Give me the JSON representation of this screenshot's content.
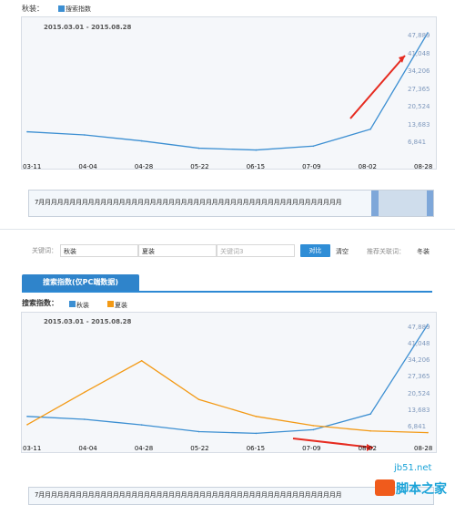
{
  "top": {
    "title": "秋装：",
    "legend": "搜索指数",
    "date_range": "2015.03.01 - 2015.08.28",
    "months_text": "7月月月月月月月月月月月月月月月月月月月月月月月月月月月月月月月月月月月月月月月月月月月月月月月月月"
  },
  "compare_row": {
    "label": "关键词：",
    "keyword1": "秋装",
    "keyword2": "夏装",
    "keyword3_placeholder": "关键词3",
    "compare_button": "对比",
    "clear": "清空",
    "recommend": "推荐关联词：",
    "recommend_value": "冬装"
  },
  "bottom": {
    "tab": "搜索指数(仅PC端数据)",
    "legend_title": "搜索指数：",
    "legend_1": "秋装",
    "legend_2": "夏装",
    "date_range": "2015.03.01 - 2015.08.28",
    "months_text": "7月月月月月月月月月月月月月月月月月月月月月月月月月月月月月月月月月月月月月月月月月月月月月月月月月"
  },
  "watermark": {
    "site": "jb51.net",
    "brand": "脚本之家"
  },
  "colors": {
    "blue": "#3c8fd2",
    "orange": "#f39a16",
    "red": "#e62b20"
  },
  "chart_data": [
    {
      "type": "line",
      "x": [
        "03-11",
        "04-04",
        "04-28",
        "05-22",
        "06-15",
        "07-09",
        "08-02",
        "08-28"
      ],
      "series": [
        {
          "name": "搜索指数",
          "values": [
            11000,
            9800,
            7500,
            4700,
            4000,
            5500,
            12000,
            49000
          ]
        }
      ],
      "y_ticks": [
        6841,
        13683,
        20524,
        27365,
        34206,
        41048,
        47889
      ],
      "ylim": [
        0,
        49000
      ]
    },
    {
      "type": "line",
      "x": [
        "03-11",
        "04-04",
        "04-28",
        "05-22",
        "06-15",
        "07-09",
        "08-02",
        "08-28"
      ],
      "series": [
        {
          "name": "秋装",
          "values": [
            11000,
            9800,
            7500,
            4700,
            4000,
            5500,
            12000,
            49000
          ]
        },
        {
          "name": "夏装",
          "values": [
            7600,
            21000,
            34000,
            18000,
            11000,
            7200,
            5000,
            4300
          ]
        }
      ],
      "y_ticks": [
        6841,
        13683,
        20524,
        27365,
        34206,
        41048,
        47889
      ],
      "ylim": [
        0,
        49000
      ]
    }
  ]
}
